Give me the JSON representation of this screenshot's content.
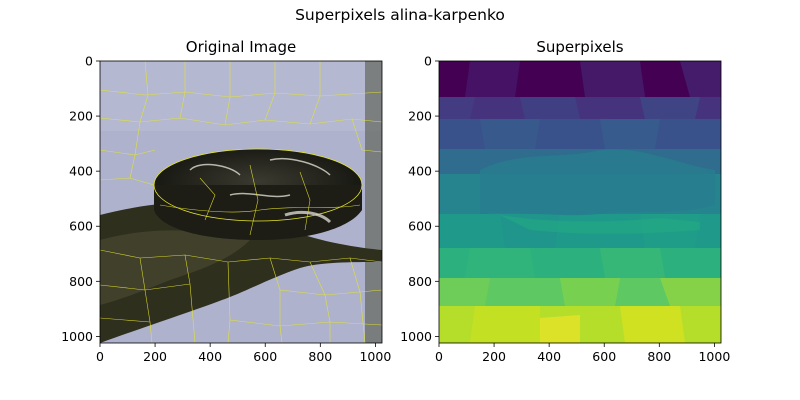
{
  "chart_data": {
    "suptitle": "Superpixels alina-karpenko",
    "panels": [
      {
        "type": "image",
        "title": "Original Image",
        "content": "photo with superpixel boundaries",
        "boundary_color": "#e6e62a",
        "xlim": [
          0,
          1024
        ],
        "ylim": [
          1024,
          0
        ],
        "xticks": [
          0,
          200,
          400,
          600,
          800,
          1000
        ],
        "yticks": [
          0,
          200,
          400,
          600,
          800,
          1000
        ]
      },
      {
        "type": "heatmap",
        "title": "Superpixels",
        "colormap": "viridis",
        "xlim": [
          0,
          1024
        ],
        "ylim": [
          1024,
          0
        ],
        "xticks": [
          0,
          200,
          400,
          600,
          800,
          1000
        ],
        "yticks": [
          0,
          200,
          400,
          600,
          800,
          1000
        ]
      }
    ]
  }
}
